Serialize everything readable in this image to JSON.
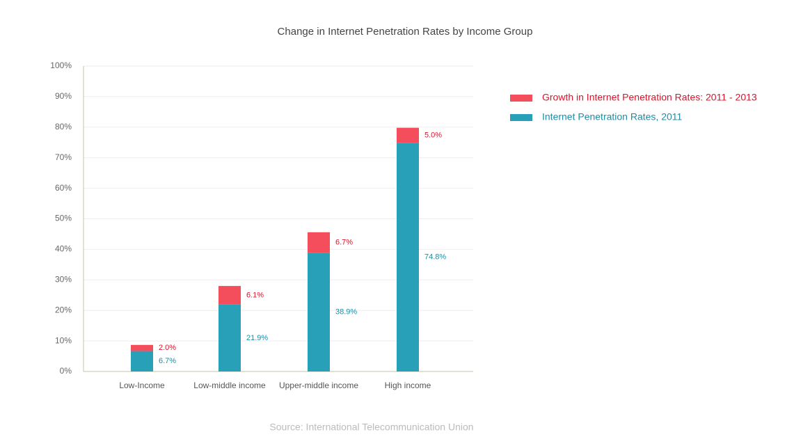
{
  "chart_data": {
    "type": "stacked-bar",
    "title": "Change in Internet Penetration Rates by Income Group",
    "source": "Source: International Telecommunication Union",
    "categories": [
      "Low-Income",
      "Low-middle income",
      "Upper-middle income",
      "High income"
    ],
    "series": [
      {
        "name": "Internet Penetration Rates, 2011",
        "color": "#27a0b8",
        "label_color": "#1b8ea6",
        "values": [
          6.7,
          21.9,
          38.9,
          74.8
        ],
        "value_labels": [
          "6.7%",
          "21.9%",
          "38.9%",
          "74.8%"
        ]
      },
      {
        "name": "Growth in Internet Penetration Rates: 2011 - 2013",
        "color": "#f44e5c",
        "label_color": "#d8142b",
        "values": [
          2.0,
          6.1,
          6.7,
          5.0
        ],
        "value_labels": [
          "2.0%",
          "6.1%",
          "6.7%",
          "5.0%"
        ]
      }
    ],
    "ylim": [
      0,
      100
    ],
    "yticks": [
      {
        "value": 0,
        "label": "0%"
      },
      {
        "value": 10,
        "label": "10%"
      },
      {
        "value": 20,
        "label": "20%"
      },
      {
        "value": 30,
        "label": "30%"
      },
      {
        "value": 40,
        "label": "40%"
      },
      {
        "value": 50,
        "label": "50%"
      },
      {
        "value": 60,
        "label": "60%"
      },
      {
        "value": 70,
        "label": "70%"
      },
      {
        "value": 80,
        "label": "80%"
      },
      {
        "value": 90,
        "label": "90%"
      },
      {
        "value": 100,
        "label": "100%"
      }
    ],
    "grid": true
  }
}
